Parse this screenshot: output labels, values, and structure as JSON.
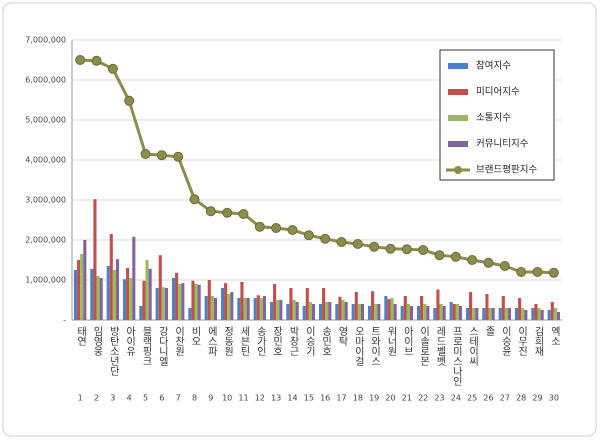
{
  "chart_data": {
    "type": "bar",
    "categories": [
      "태연",
      "임영웅",
      "방탄소년단",
      "아이유",
      "블랙핑크",
      "강다니엘",
      "이찬원",
      "비오",
      "에스파",
      "정동원",
      "세븐틴",
      "송가인",
      "장민호",
      "박창근",
      "이승기",
      "송민호",
      "영탁",
      "오마이걸",
      "트와이스",
      "워너원",
      "아이브",
      "이솔로몬",
      "레드벨벳",
      "프로미스나인",
      "스테이씨",
      "졸",
      "이승윤",
      "이무진",
      "김희재",
      "엑소"
    ],
    "ranks": [
      1,
      2,
      3,
      4,
      5,
      6,
      7,
      8,
      9,
      10,
      11,
      12,
      13,
      14,
      15,
      16,
      17,
      18,
      19,
      20,
      21,
      22,
      23,
      24,
      25,
      26,
      27,
      28,
      29,
      30
    ],
    "ylim": [
      0,
      7000000
    ],
    "yticks": [
      {
        "value": 0,
        "label": "-"
      },
      {
        "value": 1000000,
        "label": "1,000,000"
      },
      {
        "value": 2000000,
        "label": "2,000,000"
      },
      {
        "value": 3000000,
        "label": "3,000,000"
      },
      {
        "value": 4000000,
        "label": "4,000,000"
      },
      {
        "value": 5000000,
        "label": "5,000,000"
      },
      {
        "value": 6000000,
        "label": "6,000,000"
      },
      {
        "value": 7000000,
        "label": "7,000,000"
      }
    ],
    "grid": true,
    "legend_position": "upper right",
    "series": [
      {
        "name": "참여지수",
        "color": "#4f81bd",
        "type": "bar",
        "values": [
          1250000,
          1280000,
          1350000,
          1020000,
          350000,
          800000,
          1050000,
          300000,
          600000,
          800000,
          550000,
          550000,
          450000,
          400000,
          350000,
          400000,
          400000,
          400000,
          350000,
          600000,
          350000,
          350000,
          300000,
          450000,
          300000,
          300000,
          300000,
          300000,
          300000,
          250000
        ]
      },
      {
        "name": "미디어지수",
        "color": "#c0504d",
        "type": "bar",
        "values": [
          1500000,
          3020000,
          2150000,
          1300000,
          980000,
          1620000,
          1180000,
          980000,
          1000000,
          920000,
          950000,
          620000,
          900000,
          800000,
          800000,
          800000,
          580000,
          700000,
          720000,
          520000,
          600000,
          600000,
          760000,
          400000,
          700000,
          650000,
          600000,
          550000,
          400000,
          450000
        ]
      },
      {
        "name": "소통지수",
        "color": "#9bbb59",
        "type": "bar",
        "values": [
          1650000,
          1100000,
          1250000,
          1050000,
          1500000,
          820000,
          900000,
          900000,
          600000,
          650000,
          550000,
          550000,
          500000,
          500000,
          450000,
          450000,
          500000,
          400000,
          400000,
          550000,
          400000,
          400000,
          400000,
          400000,
          300000,
          300000,
          300000,
          300000,
          300000,
          300000
        ]
      },
      {
        "name": "커뮤니티지수",
        "color": "#8064a2",
        "type": "bar",
        "values": [
          2000000,
          1050000,
          1520000,
          2080000,
          1280000,
          800000,
          920000,
          880000,
          550000,
          700000,
          550000,
          600000,
          500000,
          450000,
          400000,
          450000,
          450000,
          400000,
          400000,
          400000,
          350000,
          350000,
          350000,
          350000,
          300000,
          300000,
          300000,
          250000,
          250000,
          200000
        ]
      },
      {
        "name": "브랜드평판지수",
        "color": "#8c8c4e",
        "type": "line",
        "values": [
          6500000,
          6480000,
          6280000,
          5480000,
          4150000,
          4120000,
          4080000,
          3020000,
          2720000,
          2680000,
          2650000,
          2330000,
          2300000,
          2250000,
          2120000,
          2030000,
          1950000,
          1900000,
          1830000,
          1780000,
          1770000,
          1750000,
          1620000,
          1580000,
          1500000,
          1430000,
          1350000,
          1200000,
          1200000,
          1180000
        ]
      }
    ]
  }
}
